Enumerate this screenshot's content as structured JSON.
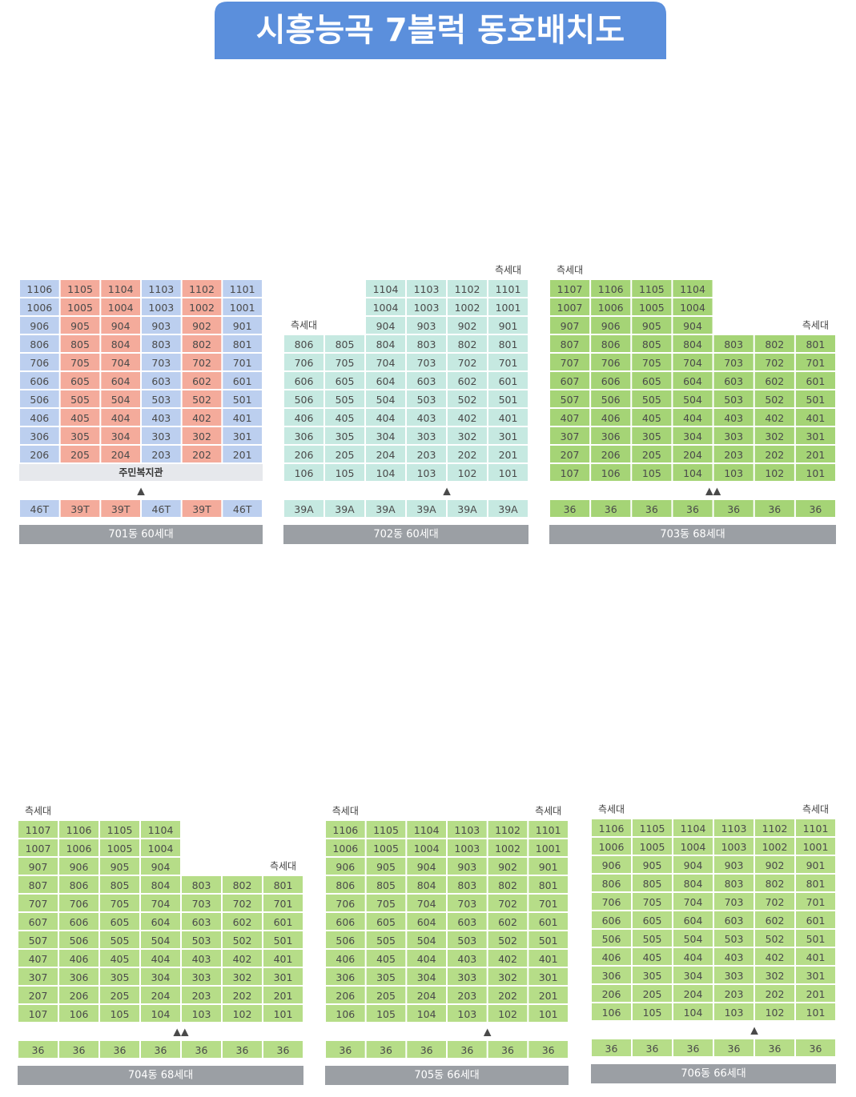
{
  "title": "시흥능곡 7블럭 동호배치도",
  "buildings": [
    {
      "label": "701동 60세대",
      "column_colors": [
        "#bccfef",
        "#f4ab9b",
        "#f4ab9b",
        "#bccfef",
        "#f4ab9b",
        "#bccfef"
      ],
      "rows": [
        [
          "1106",
          "1105",
          "1104",
          "1103",
          "1102",
          "1101"
        ],
        [
          "1006",
          "1005",
          "1004",
          "1003",
          "1002",
          "1001"
        ],
        [
          "906",
          "905",
          "904",
          "903",
          "902",
          "901"
        ],
        [
          "806",
          "805",
          "804",
          "803",
          "802",
          "801"
        ],
        [
          "706",
          "705",
          "704",
          "703",
          "702",
          "701"
        ],
        [
          "606",
          "605",
          "604",
          "603",
          "602",
          "601"
        ],
        [
          "506",
          "505",
          "504",
          "503",
          "502",
          "501"
        ],
        [
          "406",
          "405",
          "404",
          "403",
          "402",
          "401"
        ],
        [
          "306",
          "305",
          "304",
          "303",
          "302",
          "301"
        ],
        [
          "206",
          "205",
          "204",
          "203",
          "202",
          "201"
        ]
      ],
      "amenity": "주민복지관",
      "entrance": "▲",
      "types": [
        "46T",
        "39T",
        "39T",
        "46T",
        "39T",
        "46T"
      ]
    },
    {
      "label": "702동 60세대",
      "color": "#c6e9e1",
      "rows": [
        [
          null,
          null,
          null,
          null,
          null,
          {
            "note": "측세대"
          }
        ],
        [
          null,
          null,
          "1104",
          "1103",
          "1102",
          "1101"
        ],
        [
          null,
          null,
          "1004",
          "1003",
          "1002",
          "1001"
        ],
        [
          {
            "note": "측세대"
          },
          null,
          "904",
          "903",
          "902",
          "901"
        ],
        [
          "806",
          "805",
          "804",
          "803",
          "802",
          "801"
        ],
        [
          "706",
          "705",
          "704",
          "703",
          "702",
          "701"
        ],
        [
          "606",
          "605",
          "604",
          "603",
          "602",
          "601"
        ],
        [
          "506",
          "505",
          "504",
          "503",
          "502",
          "501"
        ],
        [
          "406",
          "405",
          "404",
          "403",
          "402",
          "401"
        ],
        [
          "306",
          "305",
          "304",
          "303",
          "302",
          "301"
        ],
        [
          "206",
          "205",
          "204",
          "203",
          "202",
          "201"
        ],
        [
          "106",
          "105",
          "104",
          "103",
          "102",
          "101"
        ]
      ],
      "entrance": "▲",
      "types": [
        "39A",
        "39A",
        "39A",
        "39A",
        "39A",
        "39A"
      ]
    },
    {
      "label": "703동 68세대",
      "color": "#a5d476",
      "rows": [
        [
          {
            "note": "측세대"
          },
          null,
          null,
          null,
          null,
          null,
          null
        ],
        [
          "1107",
          "1106",
          "1105",
          "1104",
          null,
          null,
          null
        ],
        [
          "1007",
          "1006",
          "1005",
          "1004",
          null,
          null,
          null
        ],
        [
          "907",
          "906",
          "905",
          "904",
          null,
          null,
          {
            "note": "측세대"
          }
        ],
        [
          "807",
          "806",
          "805",
          "804",
          "803",
          "802",
          "801"
        ],
        [
          "707",
          "706",
          "705",
          "704",
          "703",
          "702",
          "701"
        ],
        [
          "607",
          "606",
          "605",
          "604",
          "603",
          "602",
          "601"
        ],
        [
          "507",
          "506",
          "505",
          "504",
          "503",
          "502",
          "501"
        ],
        [
          "407",
          "406",
          "405",
          "404",
          "403",
          "402",
          "401"
        ],
        [
          "307",
          "306",
          "305",
          "304",
          "303",
          "302",
          "301"
        ],
        [
          "207",
          "206",
          "205",
          "204",
          "203",
          "202",
          "201"
        ],
        [
          "107",
          "106",
          "105",
          "104",
          "103",
          "102",
          "101"
        ]
      ],
      "entrance": "▲▲",
      "types": [
        "36",
        "36",
        "36",
        "36",
        "36",
        "36",
        "36"
      ]
    },
    {
      "label": "704동 68세대",
      "color": "#b6dd88",
      "rows": [
        [
          {
            "note": "측세대"
          },
          null,
          null,
          null,
          null,
          null,
          null
        ],
        [
          "1107",
          "1106",
          "1105",
          "1104",
          null,
          null,
          null
        ],
        [
          "1007",
          "1006",
          "1005",
          "1004",
          null,
          null,
          null
        ],
        [
          "907",
          "906",
          "905",
          "904",
          null,
          null,
          {
            "note": "측세대"
          }
        ],
        [
          "807",
          "806",
          "805",
          "804",
          "803",
          "802",
          "801"
        ],
        [
          "707",
          "706",
          "705",
          "704",
          "703",
          "702",
          "701"
        ],
        [
          "607",
          "606",
          "605",
          "604",
          "603",
          "602",
          "601"
        ],
        [
          "507",
          "506",
          "505",
          "504",
          "503",
          "502",
          "501"
        ],
        [
          "407",
          "406",
          "405",
          "404",
          "403",
          "402",
          "401"
        ],
        [
          "307",
          "306",
          "305",
          "304",
          "303",
          "302",
          "301"
        ],
        [
          "207",
          "206",
          "205",
          "204",
          "203",
          "202",
          "201"
        ],
        [
          "107",
          "106",
          "105",
          "104",
          "103",
          "102",
          "101"
        ]
      ],
      "entrance": "▲▲",
      "types": [
        "36",
        "36",
        "36",
        "36",
        "36",
        "36",
        "36"
      ]
    },
    {
      "label": "705동 66세대",
      "color": "#b6dd88",
      "rows": [
        [
          {
            "note": "측세대"
          },
          null,
          null,
          null,
          null,
          {
            "note": "측세대"
          }
        ],
        [
          "1106",
          "1105",
          "1104",
          "1103",
          "1102",
          "1101"
        ],
        [
          "1006",
          "1005",
          "1004",
          "1003",
          "1002",
          "1001"
        ],
        [
          "906",
          "905",
          "904",
          "903",
          "902",
          "901"
        ],
        [
          "806",
          "805",
          "804",
          "803",
          "802",
          "801"
        ],
        [
          "706",
          "705",
          "704",
          "703",
          "702",
          "701"
        ],
        [
          "606",
          "605",
          "604",
          "603",
          "602",
          "601"
        ],
        [
          "506",
          "505",
          "504",
          "503",
          "502",
          "501"
        ],
        [
          "406",
          "405",
          "404",
          "403",
          "402",
          "401"
        ],
        [
          "306",
          "305",
          "304",
          "303",
          "302",
          "301"
        ],
        [
          "206",
          "205",
          "204",
          "203",
          "202",
          "201"
        ],
        [
          "106",
          "105",
          "104",
          "103",
          "102",
          "101"
        ]
      ],
      "entrance": "▲",
      "types": [
        "36",
        "36",
        "36",
        "36",
        "36",
        "36"
      ]
    },
    {
      "label": "706동 66세대",
      "color": "#b6dd88",
      "rows": [
        [
          {
            "note": "측세대"
          },
          null,
          null,
          null,
          null,
          {
            "note": "측세대"
          }
        ],
        [
          "1106",
          "1105",
          "1104",
          "1103",
          "1102",
          "1101"
        ],
        [
          "1006",
          "1005",
          "1004",
          "1003",
          "1002",
          "1001"
        ],
        [
          "906",
          "905",
          "904",
          "903",
          "902",
          "901"
        ],
        [
          "806",
          "805",
          "804",
          "803",
          "802",
          "801"
        ],
        [
          "706",
          "705",
          "704",
          "703",
          "702",
          "701"
        ],
        [
          "606",
          "605",
          "604",
          "603",
          "602",
          "601"
        ],
        [
          "506",
          "505",
          "504",
          "503",
          "502",
          "501"
        ],
        [
          "406",
          "405",
          "404",
          "403",
          "402",
          "401"
        ],
        [
          "306",
          "305",
          "304",
          "303",
          "302",
          "301"
        ],
        [
          "206",
          "205",
          "204",
          "203",
          "202",
          "201"
        ],
        [
          "106",
          "105",
          "104",
          "103",
          "102",
          "101"
        ]
      ],
      "entrance": "▲",
      "types": [
        "36",
        "36",
        "36",
        "36",
        "36",
        "36"
      ]
    }
  ]
}
